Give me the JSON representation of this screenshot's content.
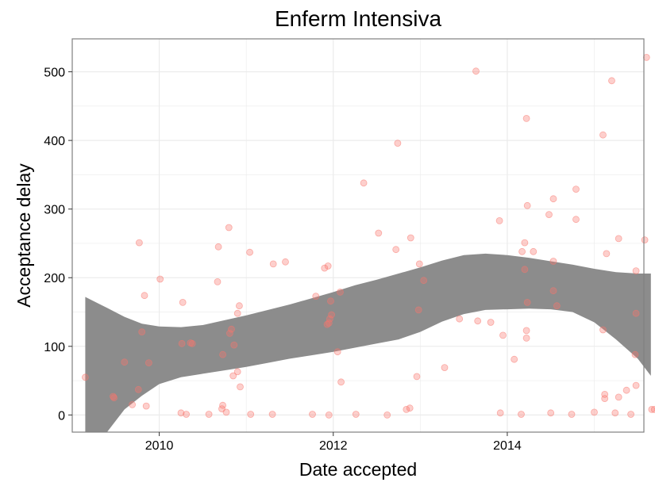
{
  "chart_data": {
    "type": "scatter",
    "title": "Enferm Intensiva",
    "xlabel": "Date accepted",
    "ylabel": "Acceptance delay",
    "x_axis_type": "date-year",
    "xlim": [
      2009.0,
      2015.57
    ],
    "ylim": [
      -25,
      548
    ],
    "x_ticks": [
      2010,
      2012,
      2014
    ],
    "x_tick_labels": [
      "2010",
      "2012",
      "2014"
    ],
    "y_ticks": [
      0,
      100,
      200,
      300,
      400,
      500
    ],
    "y_tick_labels": [
      "0",
      "100",
      "200",
      "300",
      "400",
      "500"
    ],
    "grid": true,
    "legend": "none",
    "colors": {
      "points": "#f8766d",
      "ribbon": "#8c8c8c",
      "panel_border": "#808080",
      "grid": "#ebebeb"
    },
    "points": [
      [
        2009.15,
        55
      ],
      [
        2009.47,
        27
      ],
      [
        2009.48,
        25
      ],
      [
        2009.6,
        77
      ],
      [
        2009.69,
        15
      ],
      [
        2009.76,
        37
      ],
      [
        2009.77,
        251
      ],
      [
        2009.8,
        121
      ],
      [
        2009.83,
        174
      ],
      [
        2009.85,
        13
      ],
      [
        2009.88,
        76
      ],
      [
        2010.01,
        198
      ],
      [
        2010.25,
        3
      ],
      [
        2010.26,
        104
      ],
      [
        2010.27,
        164
      ],
      [
        2010.31,
        1
      ],
      [
        2010.36,
        105
      ],
      [
        2010.38,
        104
      ],
      [
        2010.57,
        1
      ],
      [
        2010.67,
        194
      ],
      [
        2010.68,
        245
      ],
      [
        2010.72,
        9
      ],
      [
        2010.73,
        14
      ],
      [
        2010.73,
        88
      ],
      [
        2010.77,
        4
      ],
      [
        2010.8,
        273
      ],
      [
        2010.81,
        119
      ],
      [
        2010.83,
        125
      ],
      [
        2010.85,
        57
      ],
      [
        2010.86,
        102
      ],
      [
        2010.9,
        63
      ],
      [
        2010.9,
        148
      ],
      [
        2010.92,
        159
      ],
      [
        2010.93,
        41
      ],
      [
        2011.04,
        237
      ],
      [
        2011.05,
        1
      ],
      [
        2011.3,
        1
      ],
      [
        2011.31,
        220
      ],
      [
        2011.45,
        223
      ],
      [
        2011.76,
        1
      ],
      [
        2011.8,
        173
      ],
      [
        2011.9,
        214
      ],
      [
        2011.94,
        217
      ],
      [
        2011.93,
        132
      ],
      [
        2011.95,
        134
      ],
      [
        2011.96,
        140
      ],
      [
        2011.97,
        166
      ],
      [
        2011.98,
        146
      ],
      [
        2011.95,
        0
      ],
      [
        2012.05,
        92
      ],
      [
        2012.08,
        179
      ],
      [
        2012.09,
        48
      ],
      [
        2012.26,
        1
      ],
      [
        2012.35,
        338
      ],
      [
        2012.52,
        265
      ],
      [
        2012.62,
        0
      ],
      [
        2012.72,
        241
      ],
      [
        2012.74,
        396
      ],
      [
        2012.84,
        8
      ],
      [
        2012.88,
        10
      ],
      [
        2012.89,
        258
      ],
      [
        2012.96,
        56
      ],
      [
        2012.98,
        153
      ],
      [
        2012.99,
        220
      ],
      [
        2013.04,
        196
      ],
      [
        2013.28,
        69
      ],
      [
        2013.45,
        140
      ],
      [
        2013.64,
        501
      ],
      [
        2013.66,
        137
      ],
      [
        2013.81,
        135
      ],
      [
        2013.91,
        283
      ],
      [
        2013.92,
        3
      ],
      [
        2013.95,
        116
      ],
      [
        2014.08,
        81
      ],
      [
        2014.16,
        1
      ],
      [
        2014.17,
        238
      ],
      [
        2014.22,
        432
      ],
      [
        2014.23,
        164
      ],
      [
        2014.2,
        212
      ],
      [
        2014.2,
        251
      ],
      [
        2014.23,
        305
      ],
      [
        2014.22,
        112
      ],
      [
        2014.22,
        123
      ],
      [
        2014.3,
        238
      ],
      [
        2014.5,
        3
      ],
      [
        2014.48,
        292
      ],
      [
        2014.53,
        315
      ],
      [
        2014.53,
        224
      ],
      [
        2014.53,
        181
      ],
      [
        2014.57,
        159
      ],
      [
        2014.74,
        1
      ],
      [
        2014.79,
        329
      ],
      [
        2014.79,
        285
      ],
      [
        2015.0,
        4
      ],
      [
        2015.1,
        408
      ],
      [
        2015.1,
        124
      ],
      [
        2015.12,
        24
      ],
      [
        2015.12,
        30
      ],
      [
        2015.14,
        235
      ],
      [
        2015.2,
        487
      ],
      [
        2015.24,
        3
      ],
      [
        2015.28,
        257
      ],
      [
        2015.28,
        26
      ],
      [
        2015.37,
        36
      ],
      [
        2015.42,
        1
      ],
      [
        2015.47,
        88
      ],
      [
        2015.48,
        210
      ],
      [
        2015.48,
        148
      ],
      [
        2015.48,
        43
      ],
      [
        2015.58,
        255
      ],
      [
        2015.6,
        521
      ],
      [
        2015.66,
        8
      ],
      [
        2015.69,
        8
      ],
      [
        2015.76,
        166
      ]
    ],
    "smooth_ribbon": {
      "x": [
        2009.15,
        2009.4,
        2009.6,
        2009.8,
        2010.0,
        2010.25,
        2010.5,
        2010.75,
        2011.0,
        2011.25,
        2011.5,
        2011.75,
        2012.0,
        2012.25,
        2012.5,
        2012.75,
        2013.0,
        2013.25,
        2013.5,
        2013.75,
        2014.0,
        2014.25,
        2014.5,
        2014.75,
        2015.0,
        2015.25,
        2015.5,
        2015.65
      ],
      "lower": [
        -25,
        -25,
        8,
        28,
        45,
        55,
        60,
        65,
        70,
        76,
        82,
        87,
        92,
        98,
        104,
        110,
        121,
        136,
        147,
        153,
        154,
        155,
        154,
        150,
        135,
        110,
        82,
        57
      ],
      "upper": [
        172,
        156,
        143,
        133,
        129,
        128,
        131,
        138,
        145,
        153,
        161,
        170,
        179,
        189,
        197,
        206,
        215,
        225,
        233,
        235,
        233,
        229,
        224,
        219,
        213,
        208,
        206,
        206
      ]
    }
  }
}
